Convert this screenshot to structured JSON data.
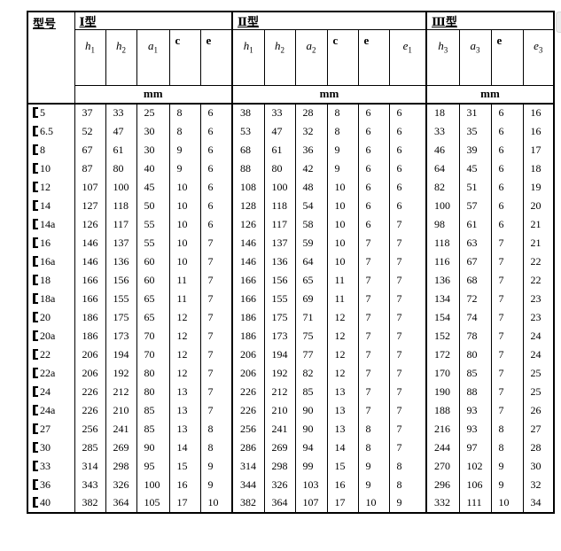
{
  "header": {
    "model_col": "型号",
    "unit": "mm",
    "groups": [
      {
        "label": "Ⅰ型",
        "columns": [
          {
            "base": "h",
            "sub": "1",
            "style": "italic"
          },
          {
            "base": "h",
            "sub": "2",
            "style": "italic"
          },
          {
            "base": "a",
            "sub": "1",
            "style": "italic"
          },
          {
            "base": "c",
            "sub": "",
            "style": "bold"
          },
          {
            "base": "e",
            "sub": "",
            "style": "bold"
          }
        ]
      },
      {
        "label": "Ⅱ型",
        "columns": [
          {
            "base": "h",
            "sub": "1",
            "style": "italic"
          },
          {
            "base": "h",
            "sub": "2",
            "style": "italic"
          },
          {
            "base": "a",
            "sub": "2",
            "style": "italic"
          },
          {
            "base": "c",
            "sub": "",
            "style": "bold"
          },
          {
            "base": "e",
            "sub": "",
            "style": "bold"
          },
          {
            "base": "e",
            "sub": "1",
            "style": "italic"
          }
        ]
      },
      {
        "label": "Ⅲ型",
        "columns": [
          {
            "base": "h",
            "sub": "3",
            "style": "italic"
          },
          {
            "base": "a",
            "sub": "3",
            "style": "italic"
          },
          {
            "base": "e",
            "sub": "",
            "style": "bold"
          },
          {
            "base": "e",
            "sub": "3",
            "style": "italic"
          }
        ]
      }
    ]
  },
  "model_prefix": "【",
  "rows": [
    {
      "model": "5",
      "I": [
        37,
        33,
        25,
        8,
        6
      ],
      "II": [
        38,
        33,
        28,
        8,
        6,
        6
      ],
      "III": [
        18,
        31,
        6,
        16
      ]
    },
    {
      "model": "6.5",
      "I": [
        52,
        47,
        30,
        8,
        6
      ],
      "II": [
        53,
        47,
        32,
        8,
        6,
        6
      ],
      "III": [
        33,
        35,
        6,
        16
      ]
    },
    {
      "model": "8",
      "I": [
        67,
        61,
        30,
        9,
        6
      ],
      "II": [
        68,
        61,
        36,
        9,
        6,
        6
      ],
      "III": [
        46,
        39,
        6,
        17
      ]
    },
    {
      "model": "10",
      "I": [
        87,
        80,
        40,
        9,
        6
      ],
      "II": [
        88,
        80,
        42,
        9,
        6,
        6
      ],
      "III": [
        64,
        45,
        6,
        18
      ]
    },
    {
      "model": "12",
      "I": [
        107,
        100,
        45,
        10,
        6
      ],
      "II": [
        108,
        100,
        48,
        10,
        6,
        6
      ],
      "III": [
        82,
        51,
        6,
        19
      ]
    },
    {
      "model": "14",
      "I": [
        127,
        118,
        50,
        10,
        6
      ],
      "II": [
        128,
        118,
        54,
        10,
        6,
        6
      ],
      "III": [
        100,
        57,
        6,
        20
      ]
    },
    {
      "model": "14a",
      "I": [
        126,
        117,
        55,
        10,
        6
      ],
      "II": [
        126,
        117,
        58,
        10,
        6,
        7
      ],
      "III": [
        98,
        61,
        6,
        21
      ]
    },
    {
      "model": "16",
      "I": [
        146,
        137,
        55,
        10,
        7
      ],
      "II": [
        146,
        137,
        59,
        10,
        7,
        7
      ],
      "III": [
        118,
        63,
        7,
        21
      ]
    },
    {
      "model": "16a",
      "I": [
        146,
        136,
        60,
        10,
        7
      ],
      "II": [
        146,
        136,
        64,
        10,
        7,
        7
      ],
      "III": [
        116,
        67,
        7,
        22
      ]
    },
    {
      "model": "18",
      "I": [
        166,
        156,
        60,
        11,
        7
      ],
      "II": [
        166,
        156,
        65,
        11,
        7,
        7
      ],
      "III": [
        136,
        68,
        7,
        22
      ]
    },
    {
      "model": "18a",
      "I": [
        166,
        155,
        65,
        11,
        7
      ],
      "II": [
        166,
        155,
        69,
        11,
        7,
        7
      ],
      "III": [
        134,
        72,
        7,
        23
      ]
    },
    {
      "model": "20",
      "I": [
        186,
        175,
        65,
        12,
        7
      ],
      "II": [
        186,
        175,
        71,
        12,
        7,
        7
      ],
      "III": [
        154,
        74,
        7,
        23
      ]
    },
    {
      "model": "20a",
      "I": [
        186,
        173,
        70,
        12,
        7
      ],
      "II": [
        186,
        173,
        75,
        12,
        7,
        7
      ],
      "III": [
        152,
        78,
        7,
        24
      ]
    },
    {
      "model": "22",
      "I": [
        206,
        194,
        70,
        12,
        7
      ],
      "II": [
        206,
        194,
        77,
        12,
        7,
        7
      ],
      "III": [
        172,
        80,
        7,
        24
      ]
    },
    {
      "model": "22a",
      "I": [
        206,
        192,
        80,
        12,
        7
      ],
      "II": [
        206,
        192,
        82,
        12,
        7,
        7
      ],
      "III": [
        170,
        85,
        7,
        25
      ]
    },
    {
      "model": "24",
      "I": [
        226,
        212,
        80,
        13,
        7
      ],
      "II": [
        226,
        212,
        85,
        13,
        7,
        7
      ],
      "III": [
        190,
        88,
        7,
        25
      ]
    },
    {
      "model": "24a",
      "I": [
        226,
        210,
        85,
        13,
        7
      ],
      "II": [
        226,
        210,
        90,
        13,
        7,
        7
      ],
      "III": [
        188,
        93,
        7,
        26
      ]
    },
    {
      "model": "27",
      "I": [
        256,
        241,
        85,
        13,
        8
      ],
      "II": [
        256,
        241,
        90,
        13,
        8,
        7
      ],
      "III": [
        216,
        93,
        8,
        27
      ]
    },
    {
      "model": "30",
      "I": [
        285,
        269,
        90,
        14,
        8
      ],
      "II": [
        286,
        269,
        94,
        14,
        8,
        7
      ],
      "III": [
        244,
        97,
        8,
        28
      ]
    },
    {
      "model": "33",
      "I": [
        314,
        298,
        95,
        15,
        9
      ],
      "II": [
        314,
        298,
        99,
        15,
        9,
        8
      ],
      "III": [
        270,
        102,
        9,
        30
      ]
    },
    {
      "model": "36",
      "I": [
        343,
        326,
        100,
        16,
        9
      ],
      "II": [
        344,
        326,
        103,
        16,
        9,
        8
      ],
      "III": [
        296,
        106,
        9,
        32
      ]
    },
    {
      "model": "40",
      "I": [
        382,
        364,
        105,
        17,
        10
      ],
      "II": [
        382,
        364,
        107,
        17,
        10,
        9
      ],
      "III": [
        332,
        111,
        10,
        34
      ]
    }
  ]
}
